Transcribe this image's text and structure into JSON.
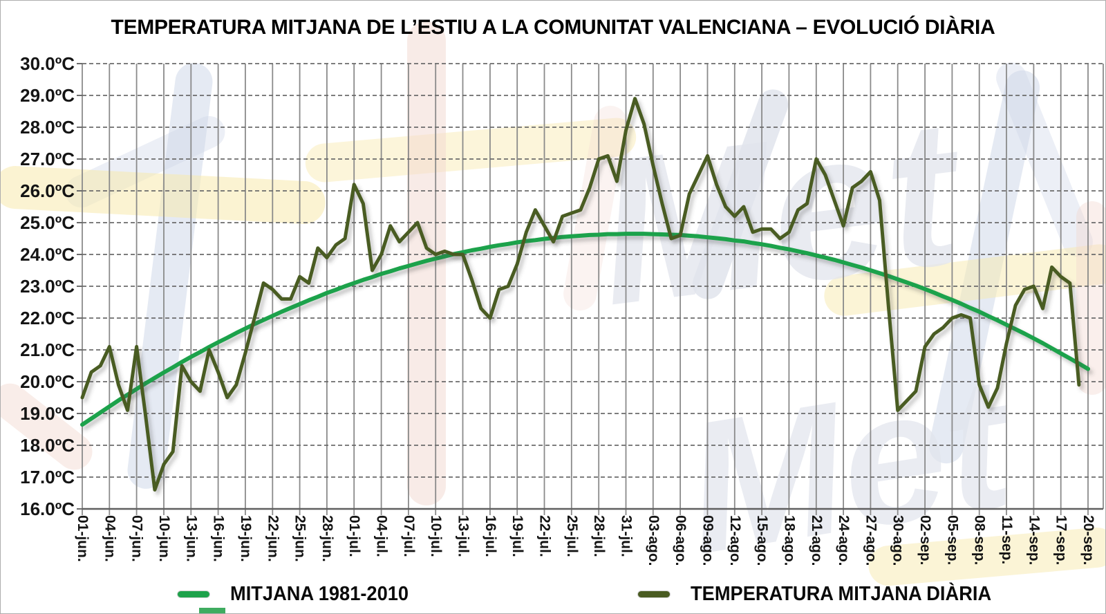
{
  "title": "TEMPERATURA MITJANA DE L’ESTIU A LA COMUNITAT VALENCIANA – EVOLUCIÓ DIÀRIA",
  "legend": [
    {
      "label": "MITJANA 1981-2010",
      "color": "#1ea24b"
    },
    {
      "label": "TEMPERATURA MITJANA DIÀRIA",
      "color": "#4a5c22"
    }
  ],
  "chart_data": {
    "type": "line",
    "title": "TEMPERATURA MITJANA DE L’ESTIU A LA COMUNITAT VALENCIANA – EVOLUCIÓ DIÀRIA",
    "sampling": "daily",
    "x_start": "01-jun.",
    "x_end": "20-sep.",
    "n_days": 112,
    "ylim": [
      16,
      30
    ],
    "ytick_step": 1,
    "grid": "both",
    "legend_position": "bottom",
    "y_tick_labels": [
      "30.0ºC",
      "29.0ºC",
      "28.0ºC",
      "27.0ºC",
      "26.0ºC",
      "25.0ºC",
      "24.0ºC",
      "23.0ºC",
      "22.0ºC",
      "21.0ºC",
      "20.0ºC",
      "19.0ºC",
      "18.0ºC",
      "17.0ºC",
      "16.0ºC"
    ],
    "x_tick_every_days": 3,
    "x_tick_labels": [
      "01-jun.",
      "04-jun.",
      "07-jun.",
      "10-jun.",
      "13-jun.",
      "16-jun.",
      "19-jun.",
      "22-jun.",
      "25-jun.",
      "28-jun.",
      "01-jul.",
      "04-jul.",
      "07-jul.",
      "10-jul.",
      "13-jul.",
      "16-jul.",
      "19-jul.",
      "22-jul.",
      "25-jul.",
      "28-jul.",
      "31-jul.",
      "03-ago.",
      "06-ago.",
      "09-ago.",
      "12-ago.",
      "15-ago.",
      "18-ago.",
      "21-ago.",
      "24-ago.",
      "27-ago.",
      "30-ago.",
      "02-sep.",
      "05-sep.",
      "08-sep.",
      "11-sep.",
      "14-sep.",
      "17-sep.",
      "20-sep."
    ],
    "series": [
      {
        "name": "MITJANA 1981-2010",
        "color": "#1ea24b",
        "width": 6,
        "values": [
          18.65,
          18.84,
          19.03,
          19.22,
          19.41,
          19.59,
          19.77,
          19.95,
          20.12,
          20.29,
          20.45,
          20.62,
          20.78,
          20.93,
          21.09,
          21.24,
          21.38,
          21.53,
          21.67,
          21.81,
          21.94,
          22.07,
          22.2,
          22.32,
          22.44,
          22.56,
          22.67,
          22.79,
          22.89,
          23.0,
          23.1,
          23.2,
          23.29,
          23.39,
          23.47,
          23.56,
          23.64,
          23.72,
          23.8,
          23.87,
          23.94,
          24.01,
          24.07,
          24.13,
          24.18,
          24.24,
          24.29,
          24.33,
          24.38,
          24.42,
          24.45,
          24.49,
          24.52,
          24.55,
          24.57,
          24.59,
          24.61,
          24.62,
          24.64,
          24.64,
          24.65,
          24.65,
          24.65,
          24.64,
          24.63,
          24.62,
          24.61,
          24.59,
          24.57,
          24.54,
          24.51,
          24.48,
          24.44,
          24.41,
          24.36,
          24.32,
          24.27,
          24.21,
          24.16,
          24.1,
          24.04,
          23.97,
          23.9,
          23.83,
          23.75,
          23.67,
          23.59,
          23.5,
          23.41,
          23.32,
          23.22,
          23.12,
          23.02,
          22.91,
          22.8,
          22.68,
          22.57,
          22.45,
          22.32,
          22.2,
          22.06,
          21.93,
          21.79,
          21.65,
          21.51,
          21.36,
          21.21,
          21.05,
          20.89,
          20.73,
          20.57,
          20.4
        ]
      },
      {
        "name": "TEMPERATURA MITJANA DIÀRIA",
        "color": "#4a5c22",
        "width": 5,
        "values": [
          19.5,
          20.3,
          20.5,
          21.1,
          19.9,
          19.1,
          21.1,
          18.9,
          16.6,
          17.4,
          17.8,
          20.5,
          20.0,
          19.7,
          21.0,
          20.3,
          19.5,
          19.9,
          20.9,
          22.0,
          23.1,
          22.9,
          22.6,
          22.6,
          23.3,
          23.1,
          24.2,
          23.9,
          24.3,
          24.5,
          26.2,
          25.6,
          23.5,
          24.0,
          24.9,
          24.4,
          24.7,
          25.0,
          24.2,
          24.0,
          24.1,
          24.0,
          24.0,
          23.2,
          22.3,
          22.0,
          22.9,
          23.0,
          23.7,
          24.7,
          25.4,
          24.9,
          24.4,
          25.2,
          25.3,
          25.4,
          26.1,
          27.0,
          27.1,
          26.3,
          27.9,
          28.9,
          28.1,
          26.8,
          25.6,
          24.5,
          24.6,
          25.9,
          26.5,
          27.1,
          26.2,
          25.5,
          25.2,
          25.5,
          24.7,
          24.8,
          24.8,
          24.5,
          24.7,
          25.4,
          25.6,
          27.0,
          26.5,
          25.7,
          24.9,
          26.1,
          26.3,
          26.6,
          25.7,
          22.3,
          19.1,
          19.4,
          19.7,
          21.1,
          21.5,
          21.7,
          22.0,
          22.1,
          22.0,
          19.9,
          19.2,
          19.8,
          21.2,
          22.4,
          22.9,
          23.0,
          22.3,
          23.6,
          23.3,
          23.1,
          19.9,
          null
        ]
      }
    ]
  },
  "watermark": {
    "text": "Met",
    "blue": "#ccd5e8",
    "yellow": "#f8e9ad",
    "red": "#f2d8cf",
    "gray": "#e2e5ed",
    "green": "#2aa34f"
  }
}
